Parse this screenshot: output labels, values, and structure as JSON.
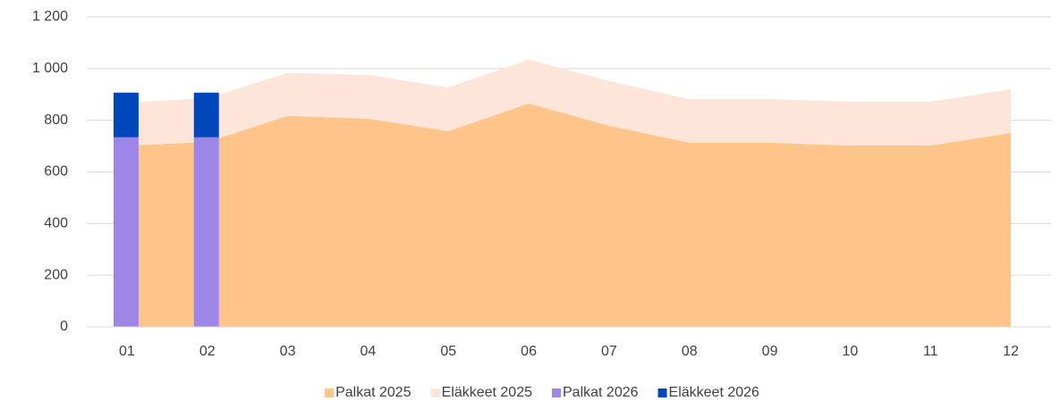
{
  "chart_data": {
    "type": "combo",
    "categories": [
      "01",
      "02",
      "03",
      "04",
      "05",
      "06",
      "07",
      "08",
      "09",
      "10",
      "11",
      "12"
    ],
    "series": [
      {
        "name": "Palkat 2025",
        "type": "area",
        "color": "#ffc48a",
        "values": [
          702,
          716,
          817,
          806,
          758,
          865,
          779,
          713,
          713,
          702,
          702,
          751
        ]
      },
      {
        "name": "Eläkkeet 2025",
        "type": "area",
        "color": "#fde5da",
        "values": [
          166,
          170,
          166,
          170,
          169,
          170,
          173,
          169,
          169,
          170,
          170,
          169
        ]
      },
      {
        "name": "Palkat 2026",
        "type": "bar",
        "color": "#9e86e6",
        "values": [
          734,
          734,
          null,
          null,
          null,
          null,
          null,
          null,
          null,
          null,
          null,
          null
        ]
      },
      {
        "name": "Eläkkeet 2026",
        "type": "bar",
        "color": "#0047bb",
        "values": [
          173,
          173,
          null,
          null,
          null,
          null,
          null,
          null,
          null,
          null,
          null,
          null
        ]
      }
    ],
    "ylim": [
      0,
      1200
    ],
    "yticks": [
      0,
      200,
      400,
      600,
      800,
      {
        "value": 1000,
        "label": "1 000"
      },
      {
        "value": 1200,
        "label": "1 200"
      }
    ],
    "grid": true,
    "legend": "bottom"
  }
}
